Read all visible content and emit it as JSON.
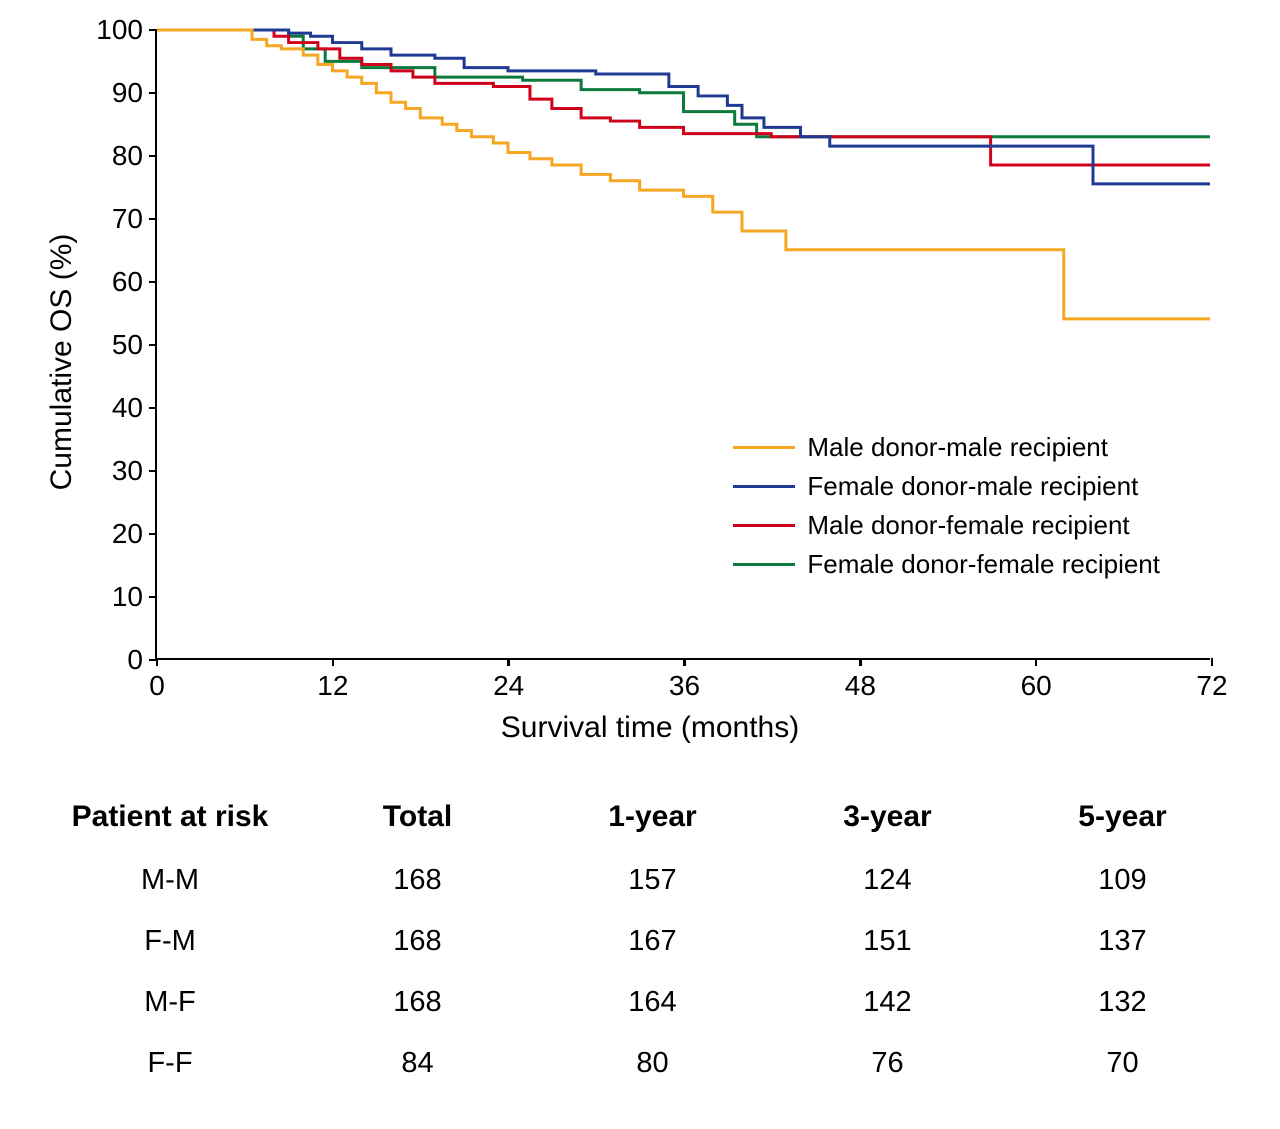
{
  "chart": {
    "type": "survival-step",
    "background_color": "#ffffff",
    "axis_color": "#000000",
    "line_width": 3,
    "ylabel": "Cumulative OS (%)",
    "xlabel": "Survival time (months)",
    "ylabel_fontsize": 30,
    "xlabel_fontsize": 30,
    "tick_fontsize": 28,
    "legend_fontsize": 26,
    "xlim": [
      0,
      72
    ],
    "ylim": [
      0,
      100
    ],
    "xticks": [
      0,
      12,
      24,
      36,
      48,
      60,
      72
    ],
    "yticks": [
      0,
      10,
      20,
      30,
      40,
      50,
      60,
      70,
      80,
      90,
      100
    ],
    "series": [
      {
        "name": "Male donor-male recipient",
        "color": "#f5a623",
        "points": [
          [
            0,
            100
          ],
          [
            6,
            100
          ],
          [
            6.5,
            98.5
          ],
          [
            7.5,
            98.5
          ],
          [
            7.5,
            97.5
          ],
          [
            8.5,
            97.5
          ],
          [
            8.5,
            97
          ],
          [
            9.5,
            97
          ],
          [
            10,
            96
          ],
          [
            11,
            96
          ],
          [
            11,
            94.5
          ],
          [
            12,
            94.5
          ],
          [
            12,
            93.5
          ],
          [
            13,
            93.5
          ],
          [
            13,
            92.5
          ],
          [
            14,
            92.5
          ],
          [
            14,
            91.5
          ],
          [
            15,
            91.5
          ],
          [
            15,
            90
          ],
          [
            16,
            90
          ],
          [
            16,
            88.5
          ],
          [
            17,
            88.5
          ],
          [
            17,
            87.5
          ],
          [
            18,
            87.5
          ],
          [
            18,
            86
          ],
          [
            19.5,
            86
          ],
          [
            19.5,
            85
          ],
          [
            20.5,
            85
          ],
          [
            20.5,
            84
          ],
          [
            21.5,
            84
          ],
          [
            21.5,
            83
          ],
          [
            23,
            83
          ],
          [
            23,
            82
          ],
          [
            24,
            82
          ],
          [
            24,
            80.5
          ],
          [
            25.5,
            80.5
          ],
          [
            25.5,
            79.5
          ],
          [
            27,
            79.5
          ],
          [
            27,
            78.5
          ],
          [
            29,
            78.5
          ],
          [
            29,
            77
          ],
          [
            31,
            77
          ],
          [
            31,
            76
          ],
          [
            33,
            76
          ],
          [
            33,
            74.5
          ],
          [
            36,
            74.5
          ],
          [
            36,
            73.5
          ],
          [
            38,
            73.5
          ],
          [
            38,
            71
          ],
          [
            40,
            71
          ],
          [
            40,
            68
          ],
          [
            43,
            68
          ],
          [
            43,
            65
          ],
          [
            62,
            65
          ],
          [
            62,
            54
          ],
          [
            72,
            54
          ]
        ]
      },
      {
        "name": "Female donor-male recipient",
        "color": "#1f3a93",
        "points": [
          [
            0,
            100
          ],
          [
            7,
            100
          ],
          [
            8,
            100
          ],
          [
            9,
            99.5
          ],
          [
            10.5,
            99.5
          ],
          [
            10.5,
            99
          ],
          [
            12,
            99
          ],
          [
            12,
            98
          ],
          [
            14,
            98
          ],
          [
            14,
            97
          ],
          [
            16,
            97
          ],
          [
            16,
            96
          ],
          [
            19,
            96
          ],
          [
            19,
            95.5
          ],
          [
            21,
            95.5
          ],
          [
            21,
            94
          ],
          [
            24,
            94
          ],
          [
            24,
            93.5
          ],
          [
            30,
            93.5
          ],
          [
            30,
            93
          ],
          [
            35,
            93
          ],
          [
            35,
            91
          ],
          [
            37,
            91
          ],
          [
            37,
            89.5
          ],
          [
            39,
            89.5
          ],
          [
            39,
            88
          ],
          [
            40,
            88
          ],
          [
            40,
            86
          ],
          [
            41.5,
            86
          ],
          [
            41.5,
            84.5
          ],
          [
            44,
            84.5
          ],
          [
            44,
            83
          ],
          [
            46,
            83
          ],
          [
            46,
            81.5
          ],
          [
            64,
            81.5
          ],
          [
            64,
            75.5
          ],
          [
            72,
            75.5
          ]
        ]
      },
      {
        "name": "Male donor-female recipient",
        "color": "#d0021b",
        "points": [
          [
            0,
            100
          ],
          [
            7.5,
            100
          ],
          [
            8,
            99
          ],
          [
            9,
            99
          ],
          [
            9,
            98
          ],
          [
            11,
            98
          ],
          [
            11,
            97
          ],
          [
            12.5,
            97
          ],
          [
            12.5,
            95.5
          ],
          [
            14,
            95.5
          ],
          [
            14,
            94.5
          ],
          [
            16,
            94.5
          ],
          [
            16,
            93.5
          ],
          [
            17.5,
            93.5
          ],
          [
            17.5,
            92.5
          ],
          [
            19,
            92.5
          ],
          [
            19,
            91.5
          ],
          [
            23,
            91.5
          ],
          [
            23,
            91
          ],
          [
            25.5,
            91
          ],
          [
            25.5,
            89
          ],
          [
            27,
            89
          ],
          [
            27,
            87.5
          ],
          [
            29,
            87.5
          ],
          [
            29,
            86
          ],
          [
            31,
            86
          ],
          [
            31,
            85.5
          ],
          [
            33,
            85.5
          ],
          [
            33,
            84.5
          ],
          [
            36,
            84.5
          ],
          [
            36,
            83.5
          ],
          [
            42,
            83.5
          ],
          [
            42,
            83
          ],
          [
            57,
            83
          ],
          [
            57,
            78.5
          ],
          [
            72,
            78.5
          ]
        ]
      },
      {
        "name": "Female donor-female recipient",
        "color": "#0b7a3b",
        "points": [
          [
            0,
            100
          ],
          [
            8.5,
            100
          ],
          [
            9,
            99
          ],
          [
            10,
            99
          ],
          [
            10,
            97
          ],
          [
            11.5,
            97
          ],
          [
            11.5,
            95
          ],
          [
            14,
            95
          ],
          [
            14,
            94
          ],
          [
            19,
            94
          ],
          [
            19,
            92.5
          ],
          [
            25,
            92.5
          ],
          [
            25,
            92
          ],
          [
            29,
            92
          ],
          [
            29,
            90.5
          ],
          [
            33,
            90.5
          ],
          [
            33,
            90
          ],
          [
            36,
            90
          ],
          [
            36,
            87
          ],
          [
            39.5,
            87
          ],
          [
            39.5,
            85
          ],
          [
            41,
            85
          ],
          [
            41,
            83
          ],
          [
            72,
            83
          ]
        ]
      }
    ],
    "legend_order": [
      0,
      1,
      2,
      3
    ]
  },
  "risk_table": {
    "header": [
      "Patient at risk",
      "Total",
      "1-year",
      "3-year",
      "5-year"
    ],
    "header_fontsize": 30,
    "cell_fontsize": 29,
    "rows": [
      {
        "label": "M-M",
        "values": [
          "168",
          "157",
          "124",
          "109"
        ]
      },
      {
        "label": "F-M",
        "values": [
          "168",
          "167",
          "151",
          "137"
        ]
      },
      {
        "label": "M-F",
        "values": [
          "168",
          "164",
          "142",
          "132"
        ]
      },
      {
        "label": "F-F",
        "values": [
          "84",
          "80",
          "76",
          "70"
        ]
      }
    ]
  }
}
